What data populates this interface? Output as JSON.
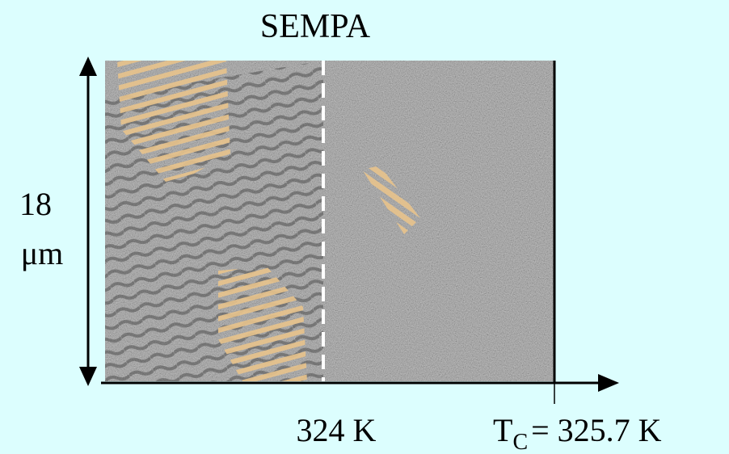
{
  "title": "SEMPA",
  "scale": {
    "value": "18",
    "unit": "μm"
  },
  "markers": {
    "left": "324 K",
    "right": {
      "symbol": "T",
      "subscript": "C",
      "rest": "= 325.7 K"
    }
  }
}
